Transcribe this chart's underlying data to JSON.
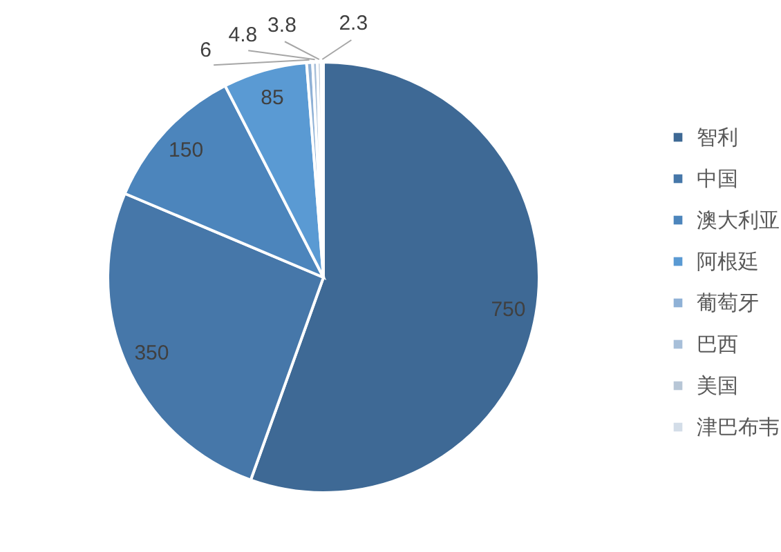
{
  "chart_data": {
    "type": "pie",
    "categories": [
      "智利",
      "中国",
      "澳大利亚",
      "阿根廷",
      "葡萄牙",
      "巴西",
      "美国",
      "津巴布韦"
    ],
    "values": [
      750,
      350,
      150,
      85,
      6,
      4.8,
      3.8,
      2.3
    ],
    "colors": [
      "#3e6995",
      "#4677a9",
      "#4c85bc",
      "#5a9ad3",
      "#8fb1d6",
      "#a7bfd9",
      "#b7c6d6",
      "#d3dde8"
    ],
    "data_labels": true,
    "legend": "right"
  }
}
